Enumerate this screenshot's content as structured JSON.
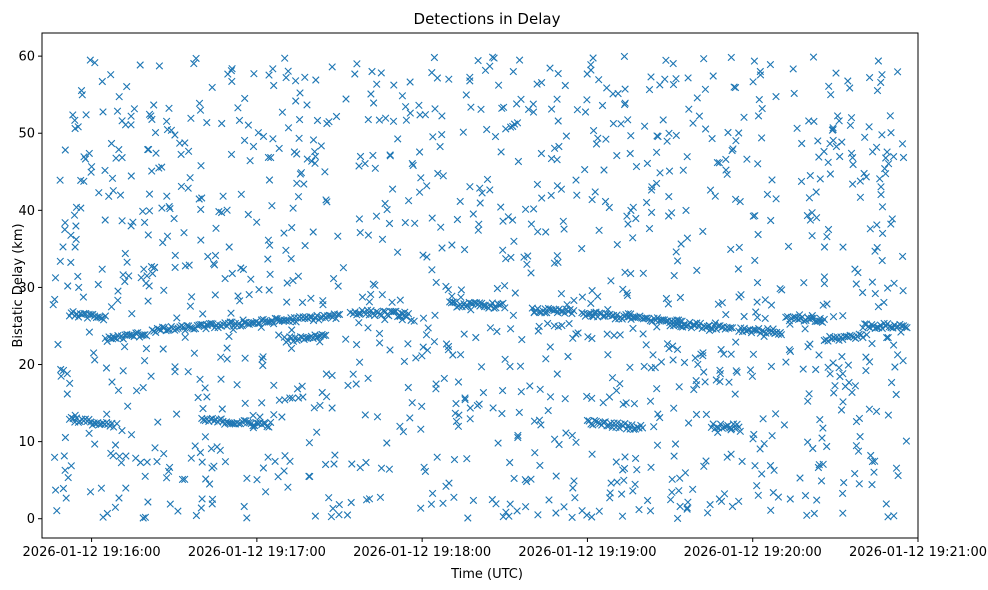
{
  "chart_data": {
    "type": "scatter",
    "title": "Detections in Delay",
    "xlabel": "Time (UTC)",
    "ylabel": "Bistatic Delay (km)",
    "marker": "x",
    "color": "#1f77b4",
    "grid": false,
    "legend": "none",
    "xlim": [
      "2026-01-12 19:15:42",
      "2026-01-12 19:21:00"
    ],
    "ylim": [
      -2.5,
      63
    ],
    "x_ticks": [
      "2026-01-12 19:16:00",
      "2026-01-12 19:17:00",
      "2026-01-12 19:18:00",
      "2026-01-12 19:19:00",
      "2026-01-12 19:20:00",
      "2026-01-12 19:21:00"
    ],
    "y_ticks": [
      0,
      10,
      20,
      30,
      40,
      50,
      60
    ],
    "time_span": [
      "2026-01-12 19:15:46",
      "2026-01-12 19:20:56"
    ],
    "tracks": [
      {
        "t": [
          "2026-01-12 19:15:52",
          "2026-01-12 19:16:05"
        ],
        "delay": [
          26.6,
          26.0
        ]
      },
      {
        "t": [
          "2026-01-12 19:16:05",
          "2026-01-12 19:16:20"
        ],
        "delay": [
          23.3,
          24.0
        ]
      },
      {
        "t": [
          "2026-01-12 19:16:22",
          "2026-01-12 19:17:30"
        ],
        "delay": [
          24.4,
          26.3
        ]
      },
      {
        "t": [
          "2026-01-12 19:17:10",
          "2026-01-12 19:17:25"
        ],
        "delay": [
          23.2,
          23.8
        ]
      },
      {
        "t": [
          "2026-01-12 19:17:35",
          "2026-01-12 19:17:55"
        ],
        "delay": [
          26.8,
          26.5
        ]
      },
      {
        "t": [
          "2026-01-12 19:18:10",
          "2026-01-12 19:18:30"
        ],
        "delay": [
          27.8,
          27.6
        ]
      },
      {
        "t": [
          "2026-01-12 19:18:40",
          "2026-01-12 19:18:55"
        ],
        "delay": [
          27.0,
          26.8
        ]
      },
      {
        "t": [
          "2026-01-12 19:18:58",
          "2026-01-12 19:19:35"
        ],
        "delay": [
          26.6,
          25.5
        ]
      },
      {
        "t": [
          "2026-01-12 19:19:30",
          "2026-01-12 19:19:52"
        ],
        "delay": [
          25.3,
          24.8
        ]
      },
      {
        "t": [
          "2026-01-12 19:19:55",
          "2026-01-12 19:20:10"
        ],
        "delay": [
          24.6,
          24.2
        ]
      },
      {
        "t": [
          "2026-01-12 19:20:12",
          "2026-01-12 19:20:26"
        ],
        "delay": [
          26.0,
          25.6
        ]
      },
      {
        "t": [
          "2026-01-12 19:20:26",
          "2026-01-12 19:20:40"
        ],
        "delay": [
          23.2,
          23.8
        ]
      },
      {
        "t": [
          "2026-01-12 19:20:40",
          "2026-01-12 19:20:56"
        ],
        "delay": [
          25.0,
          25.0
        ]
      },
      {
        "t": [
          "2026-01-12 19:15:52",
          "2026-01-12 19:16:08"
        ],
        "delay": [
          13.0,
          12.0
        ]
      },
      {
        "t": [
          "2026-01-12 19:16:40",
          "2026-01-12 19:17:05"
        ],
        "delay": [
          12.8,
          12.2
        ]
      },
      {
        "t": [
          "2026-01-12 19:19:00",
          "2026-01-12 19:19:20"
        ],
        "delay": [
          12.5,
          11.8
        ]
      },
      {
        "t": [
          "2026-01-12 19:19:45",
          "2026-01-12 19:19:55"
        ],
        "delay": [
          12.0,
          12.0
        ]
      }
    ]
  }
}
